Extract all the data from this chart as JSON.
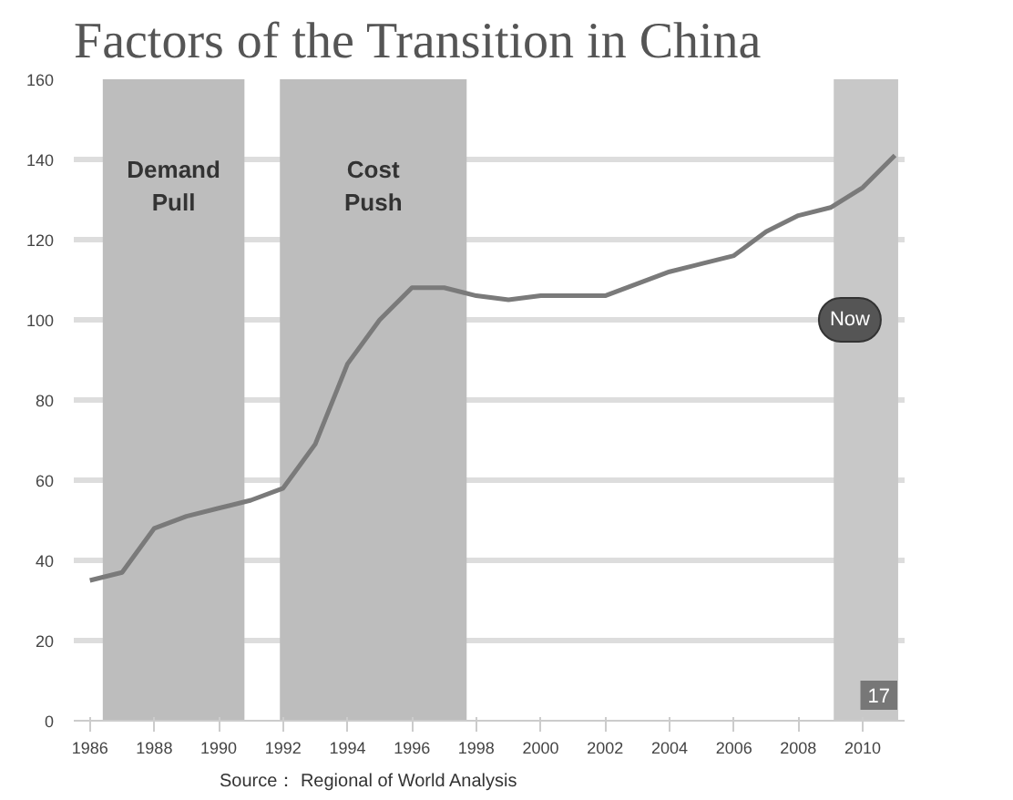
{
  "chart_data": {
    "type": "line",
    "title": "Factors of the Transition in China",
    "x": [
      1986,
      1987,
      1988,
      1989,
      1990,
      1991,
      1992,
      1993,
      1994,
      1995,
      1996,
      1997,
      1998,
      1999,
      2000,
      2001,
      2002,
      2003,
      2004,
      2005,
      2006,
      2007,
      2008,
      2009,
      2010,
      2011
    ],
    "series": [
      {
        "color": "#7a7a7a",
        "values": [
          35,
          37,
          48,
          51,
          53,
          55,
          58,
          69,
          89,
          100,
          108,
          108,
          106,
          105,
          106,
          106,
          106,
          109,
          112,
          114,
          116,
          122,
          126,
          128,
          133,
          141
        ]
      }
    ],
    "xlim": [
      1985.5,
      2011.3
    ],
    "ylim": [
      0,
      160
    ],
    "xticks": [
      1986,
      1988,
      1990,
      1992,
      1994,
      1996,
      1998,
      2000,
      2002,
      2004,
      2006,
      2008,
      2010
    ],
    "yticks": [
      0,
      20,
      40,
      60,
      80,
      100,
      120,
      140,
      160
    ],
    "grid": "y",
    "marker": "none",
    "line_style": "solid",
    "bands": [
      {
        "axis": "x",
        "from": 1986.4,
        "to": 1990.8,
        "label": "Demand\nPull",
        "color": "#bdbdbd"
      },
      {
        "axis": "x",
        "from": 1991.9,
        "to": 1997.7,
        "label": "Cost\nPush",
        "color": "#bdbdbd"
      },
      {
        "axis": "x",
        "from": 2009.1,
        "to": 2011.1,
        "color": "#c8c8c8"
      }
    ],
    "annotations": [
      {
        "text": "Now",
        "x": 2009.6,
        "y": 100
      },
      "Source： Regional of World Analysis",
      "17"
    ]
  }
}
